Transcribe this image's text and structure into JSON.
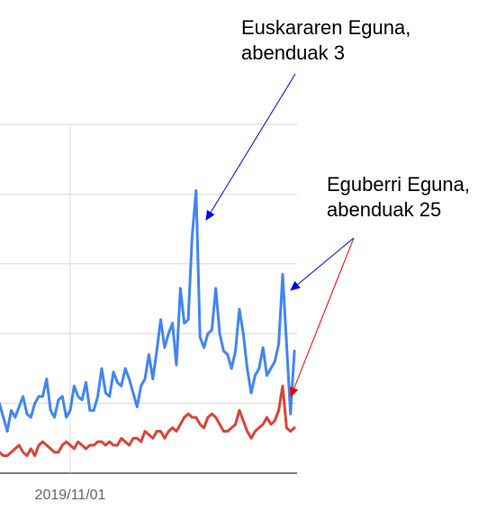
{
  "chart_data": {
    "type": "line",
    "categories": [
      null,
      null,
      null,
      null,
      null,
      null,
      null,
      null,
      null,
      null,
      null,
      null,
      null,
      null,
      null,
      null,
      null,
      null,
      "2019/11/01",
      null,
      null,
      null,
      null,
      null,
      null,
      null,
      null,
      null,
      null,
      null,
      null,
      null,
      null,
      null,
      null,
      null,
      null,
      null,
      null,
      null,
      null,
      null,
      null,
      null,
      null,
      null,
      null,
      null,
      null,
      null,
      null,
      null,
      null,
      null,
      null,
      null,
      null,
      null,
      null,
      null,
      null,
      null,
      null,
      null,
      null,
      null,
      null,
      null,
      null,
      null,
      null,
      null,
      null,
      null,
      null,
      null
    ],
    "series": [
      {
        "color": "#4285f4",
        "values": [
          20,
          16,
          12,
          18,
          16,
          19,
          22,
          17,
          16,
          20,
          22,
          22,
          27,
          18,
          16,
          21,
          22,
          16,
          18,
          25,
          22,
          21,
          26,
          18,
          18,
          22,
          30,
          23,
          22,
          29,
          26,
          25,
          30,
          27,
          23,
          19,
          25,
          27,
          34,
          27,
          35,
          44,
          36,
          40,
          43,
          31,
          53,
          43,
          44,
          68,
          81,
          39,
          36,
          40,
          41,
          53,
          40,
          35,
          34,
          30,
          35,
          47,
          40,
          30,
          23,
          28,
          30,
          36,
          28,
          30,
          32,
          37,
          57,
          37,
          17,
          35
        ]
      },
      {
        "color": "#db4437",
        "values": [
          6,
          5,
          5,
          6,
          7,
          8,
          6,
          5,
          7,
          5,
          8,
          9,
          8,
          7,
          6,
          6,
          8,
          9,
          8,
          7,
          9,
          8,
          7,
          8,
          8,
          9,
          9,
          8,
          9,
          8,
          8,
          10,
          9,
          8,
          10,
          10,
          9,
          12,
          11,
          10,
          12,
          12,
          10,
          12,
          13,
          12,
          14,
          16,
          17,
          16,
          16,
          14,
          13,
          16,
          17,
          16,
          14,
          12,
          12,
          13,
          14,
          18,
          15,
          12,
          10,
          12,
          13,
          14,
          16,
          14,
          15,
          18,
          25,
          13,
          12,
          13
        ]
      }
    ],
    "ylim": [
      0,
      100
    ],
    "yticks": [
      0,
      20,
      40,
      60,
      80,
      100
    ],
    "grid": true,
    "annotations": [
      {
        "text": [
          "Euskararen Eguna,",
          "abenduak 3"
        ]
      },
      {
        "text": [
          "Eguberri Eguna,",
          "abenduak 25"
        ]
      }
    ]
  }
}
